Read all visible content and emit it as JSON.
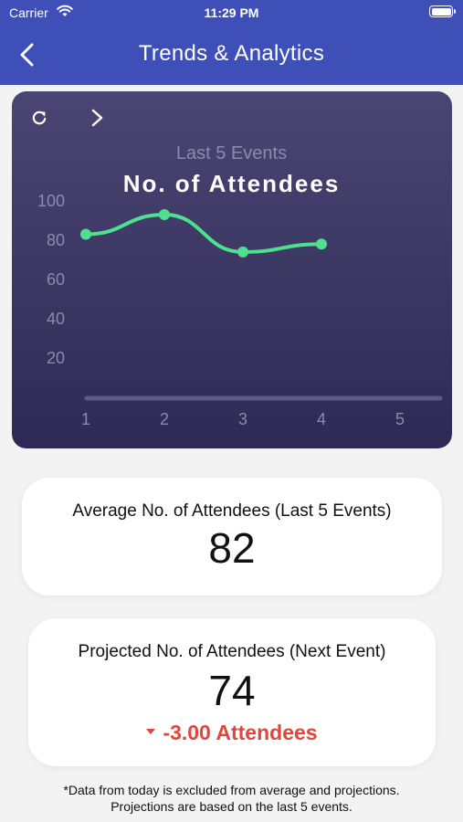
{
  "status_bar": {
    "carrier": "Carrier",
    "time": "11:29 PM"
  },
  "header": {
    "title": "Trends & Analytics",
    "back_icon": "chevron-left-icon"
  },
  "chart_card": {
    "refresh_icon": "refresh-icon",
    "next_icon": "chevron-right-icon",
    "subtitle": "Last 5 Events",
    "title": "No. of Attendees"
  },
  "chart_data": {
    "type": "line",
    "title": "No. of Attendees",
    "subtitle": "Last 5 Events",
    "x": [
      1,
      2,
      3,
      4
    ],
    "values": [
      83,
      93,
      74,
      78
    ],
    "x_ticks": [
      "1",
      "2",
      "3",
      "4",
      "5"
    ],
    "y_ticks": [
      "100",
      "80",
      "60",
      "40",
      "20"
    ],
    "xlim": [
      1,
      5
    ],
    "ylim": [
      0,
      100
    ],
    "line_color": "#4ee08e",
    "smooth": true,
    "grid": false
  },
  "average": {
    "label": "Average No. of Attendees (Last 5 Events)",
    "value": "82"
  },
  "projected": {
    "label": "Projected No. of Attendees (Next Event)",
    "value": "74",
    "delta": "-3.00 Attendees",
    "delta_color": "#e2463a"
  },
  "footnote": {
    "line1": "*Data from today is excluded from average and projections.",
    "line2": "Projections are based on the last 5 events."
  }
}
